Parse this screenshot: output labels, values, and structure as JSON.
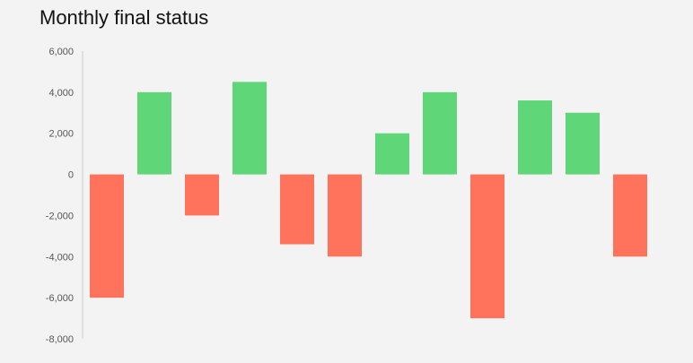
{
  "chart_data": {
    "type": "bar",
    "title": "Monthly final status",
    "xlabel": "",
    "ylabel": "",
    "ylim": [
      -8000,
      6000
    ],
    "yticks": [
      6000,
      4000,
      2000,
      0,
      -2000,
      -4000,
      -6000,
      -8000
    ],
    "ytick_labels": [
      "6,000",
      "4,000",
      "2,000",
      "0",
      "-2,000",
      "-4,000",
      "-6,000",
      "-8,000"
    ],
    "values": [
      -6000,
      4000,
      -2000,
      4500,
      -3400,
      -4000,
      2000,
      4000,
      -7000,
      3600,
      3000,
      -4000
    ],
    "grid": false,
    "legend": "none",
    "colors": {
      "positive": "#5fd778",
      "negative": "#ff725c",
      "axis": "#cccccc"
    }
  }
}
